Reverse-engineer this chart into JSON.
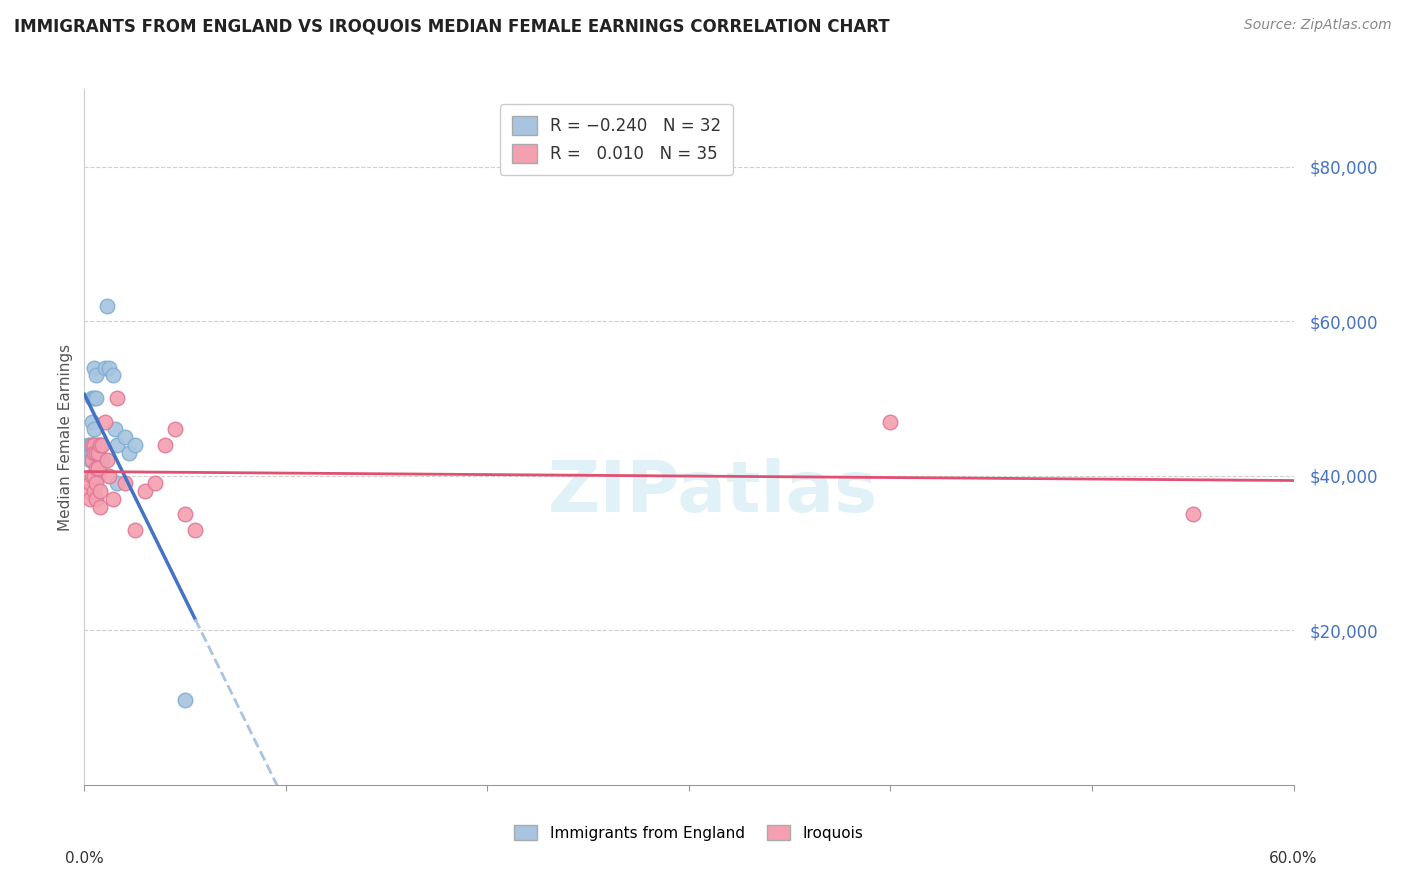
{
  "title": "IMMIGRANTS FROM ENGLAND VS IROQUOIS MEDIAN FEMALE EARNINGS CORRELATION CHART",
  "source": "Source: ZipAtlas.com",
  "ylabel": "Median Female Earnings",
  "ytick_labels": [
    "$20,000",
    "$40,000",
    "$60,000",
    "$80,000"
  ],
  "ytick_values": [
    20000,
    40000,
    60000,
    80000
  ],
  "ylim": [
    0,
    90000
  ],
  "xlim": [
    0.0,
    0.6
  ],
  "england_points": [
    [
      0.002,
      44000
    ],
    [
      0.003,
      44000
    ],
    [
      0.003,
      42000
    ],
    [
      0.004,
      50000
    ],
    [
      0.004,
      47000
    ],
    [
      0.004,
      44000
    ],
    [
      0.004,
      43000
    ],
    [
      0.005,
      54000
    ],
    [
      0.005,
      50000
    ],
    [
      0.005,
      46000
    ],
    [
      0.005,
      44000
    ],
    [
      0.006,
      53000
    ],
    [
      0.006,
      50000
    ],
    [
      0.006,
      44000
    ],
    [
      0.006,
      42000
    ],
    [
      0.007,
      44000
    ],
    [
      0.007,
      42000
    ],
    [
      0.007,
      40000
    ],
    [
      0.008,
      44000
    ],
    [
      0.008,
      41000
    ],
    [
      0.009,
      42000
    ],
    [
      0.01,
      54000
    ],
    [
      0.011,
      62000
    ],
    [
      0.012,
      54000
    ],
    [
      0.014,
      53000
    ],
    [
      0.015,
      46000
    ],
    [
      0.016,
      44000
    ],
    [
      0.016,
      39000
    ],
    [
      0.02,
      45000
    ],
    [
      0.022,
      43000
    ],
    [
      0.025,
      44000
    ],
    [
      0.05,
      11000
    ]
  ],
  "iroquois_points": [
    [
      0.002,
      38000
    ],
    [
      0.003,
      39000
    ],
    [
      0.003,
      37000
    ],
    [
      0.004,
      44000
    ],
    [
      0.004,
      42000
    ],
    [
      0.004,
      40000
    ],
    [
      0.005,
      44000
    ],
    [
      0.005,
      43000
    ],
    [
      0.005,
      40000
    ],
    [
      0.005,
      38000
    ],
    [
      0.006,
      43000
    ],
    [
      0.006,
      41000
    ],
    [
      0.006,
      39000
    ],
    [
      0.006,
      37000
    ],
    [
      0.007,
      43000
    ],
    [
      0.007,
      41000
    ],
    [
      0.008,
      44000
    ],
    [
      0.008,
      38000
    ],
    [
      0.008,
      36000
    ],
    [
      0.009,
      44000
    ],
    [
      0.01,
      47000
    ],
    [
      0.011,
      42000
    ],
    [
      0.012,
      40000
    ],
    [
      0.014,
      37000
    ],
    [
      0.016,
      50000
    ],
    [
      0.02,
      39000
    ],
    [
      0.025,
      33000
    ],
    [
      0.03,
      38000
    ],
    [
      0.035,
      39000
    ],
    [
      0.04,
      44000
    ],
    [
      0.045,
      46000
    ],
    [
      0.05,
      35000
    ],
    [
      0.055,
      33000
    ],
    [
      0.4,
      47000
    ],
    [
      0.55,
      35000
    ]
  ],
  "england_line_color": "#4472c4",
  "iroquois_line_color": "#e05070",
  "background_color": "#ffffff",
  "grid_color": "#d0d0d0",
  "title_color": "#222222",
  "axis_label_color": "#555555",
  "ytick_color": "#4472c4",
  "marker_size": 110,
  "eng_scatter_color": "#a8c4e0",
  "eng_scatter_edge": "#7fafd0",
  "iro_scatter_color": "#f4a0b0",
  "iro_scatter_edge": "#e07898"
}
